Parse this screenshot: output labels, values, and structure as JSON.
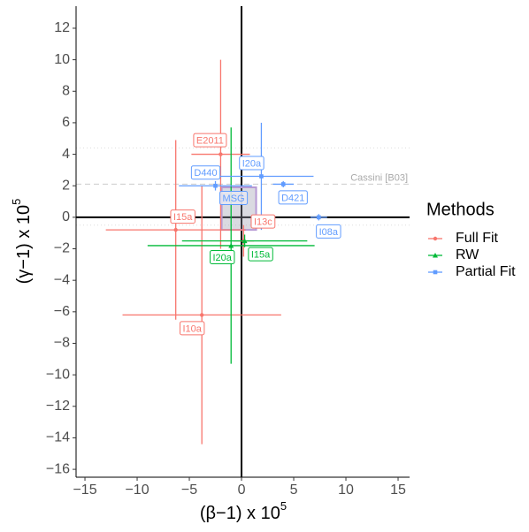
{
  "chart_data": {
    "type": "errorbar_scatter",
    "xlabel": "(β−1) x 10",
    "xlabel_exp": "5",
    "ylabel": "(γ−1) x 10",
    "ylabel_exp": "5",
    "xlim": [
      -15.85,
      16.1
    ],
    "ylim": [
      -16.5,
      13.4
    ],
    "xticks": [
      {
        "value": -15,
        "label": "−15"
      },
      {
        "value": -10,
        "label": "−10"
      },
      {
        "value": -5,
        "label": "−5"
      },
      0,
      5,
      10,
      15
    ],
    "yticks": [
      {
        "value": -16,
        "label": "−16"
      },
      {
        "value": -14,
        "label": "−14"
      },
      {
        "value": -12,
        "label": "−12"
      },
      {
        "value": -10,
        "label": "−10"
      },
      {
        "value": -8,
        "label": "−8"
      },
      {
        "value": -6,
        "label": "−6"
      },
      {
        "value": -4,
        "label": "−4"
      },
      {
        "value": -2,
        "label": "−2"
      },
      0,
      2,
      4,
      6,
      8,
      10,
      12
    ],
    "legend_title": "Methods",
    "legend_position": "right",
    "series": [
      {
        "name": "Full Fit",
        "color": "#F8766D",
        "marker": "circle",
        "points": [
          {
            "label": "E2011",
            "x": -2.0,
            "y": 4.0,
            "xerr": 2.8,
            "yerr": 6.0
          },
          {
            "label": "I15a",
            "x": -6.3,
            "y": -0.8,
            "xerr": 6.7,
            "yerr": 5.7
          },
          {
            "label": "I10a",
            "x": -3.8,
            "y": -6.2,
            "xerr": 7.6,
            "yerr": 8.2
          },
          {
            "label": "I13c",
            "x": 0.2,
            "y": -1.5,
            "xerr": 1.0,
            "yerr": 1.0
          }
        ]
      },
      {
        "name": "RW",
        "color": "#00BA38",
        "marker": "triangle",
        "points": [
          {
            "label": "I20a",
            "x": -1.0,
            "y": -1.8,
            "xerr": 8.0,
            "yerr": 7.5
          },
          {
            "label": "I15a",
            "x": 0.3,
            "y": -1.5,
            "xerr": 6.0,
            "yerr": 0.4
          }
        ]
      },
      {
        "name": "Partial Fit",
        "color": "#619CFF",
        "marker": "square",
        "points": [
          {
            "label": "D440",
            "x": -2.5,
            "y": 2.0,
            "xerr": 3.5,
            "yerr": 0.3
          },
          {
            "label": "I20a",
            "x": 1.9,
            "y": 2.6,
            "xerr": 5.0,
            "yerr": 3.4
          },
          {
            "label": "D421",
            "x": 4.0,
            "y": 2.1,
            "xerr": 1.0,
            "yerr": 0.2
          },
          {
            "label": "I08a",
            "x": 7.4,
            "y": 0.0,
            "xerr": 0.8,
            "yerr": 0.2
          }
        ]
      }
    ],
    "box": {
      "label": "MSG",
      "x": [
        -1.9,
        1.4
      ],
      "y": [
        -0.8,
        1.9
      ]
    },
    "reference_line": {
      "label": "Cassini [B03]",
      "y": 2.1
    },
    "dotted_lines": [
      4.4,
      -0.5
    ]
  }
}
